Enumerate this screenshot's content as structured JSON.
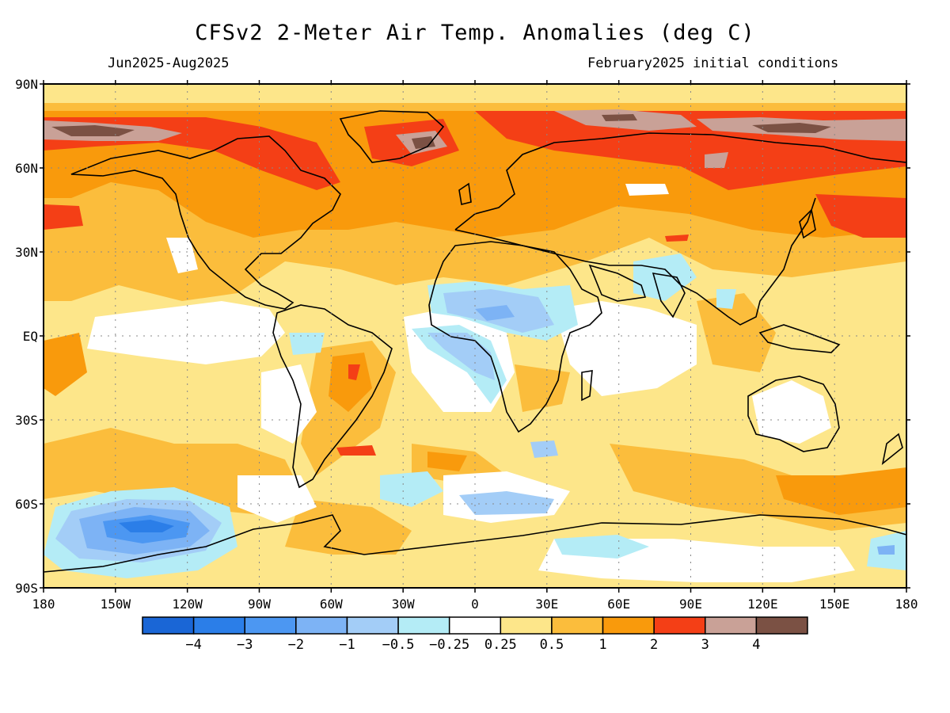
{
  "title": "CFSv2 2-Meter Air Temp. Anomalies (deg C)",
  "subtitle_left": "Jun2025-Aug2025",
  "subtitle_right": "February2025 initial conditions",
  "lat_labels": [
    "90N",
    "60N",
    "30N",
    "EQ",
    "30S",
    "60S",
    "90S"
  ],
  "lon_labels": [
    "180",
    "150W",
    "120W",
    "90W",
    "60W",
    "30W",
    "0",
    "30E",
    "60E",
    "90E",
    "120E",
    "150E",
    "180"
  ],
  "legend": {
    "colors": [
      "#1a66d6",
      "#2b7ee8",
      "#4c97f2",
      "#7db3f5",
      "#a3cdf7",
      "#b4ecf6",
      "#ffffff",
      "#fde68a",
      "#fbbd3c",
      "#f99a0c",
      "#f43f16",
      "#c9a197",
      "#7b5144"
    ],
    "labels": [
      "−4",
      "−3",
      "−2",
      "−1",
      "−0.5",
      "−0.25",
      "0.25",
      "0.5",
      "1",
      "2",
      "3",
      "4"
    ]
  },
  "colors": {
    "background": "#fde68a",
    "warm": "#fbbd3c",
    "warmer": "#f99a0c",
    "hot": "#f43f16",
    "very_hot": "#c9a197",
    "extreme": "#7b5144",
    "neutral": "#ffffff",
    "cool": "#b4ecf6",
    "cooler": "#a3cdf7",
    "cold": "#7db3f5",
    "colder": "#4c97f2"
  }
}
